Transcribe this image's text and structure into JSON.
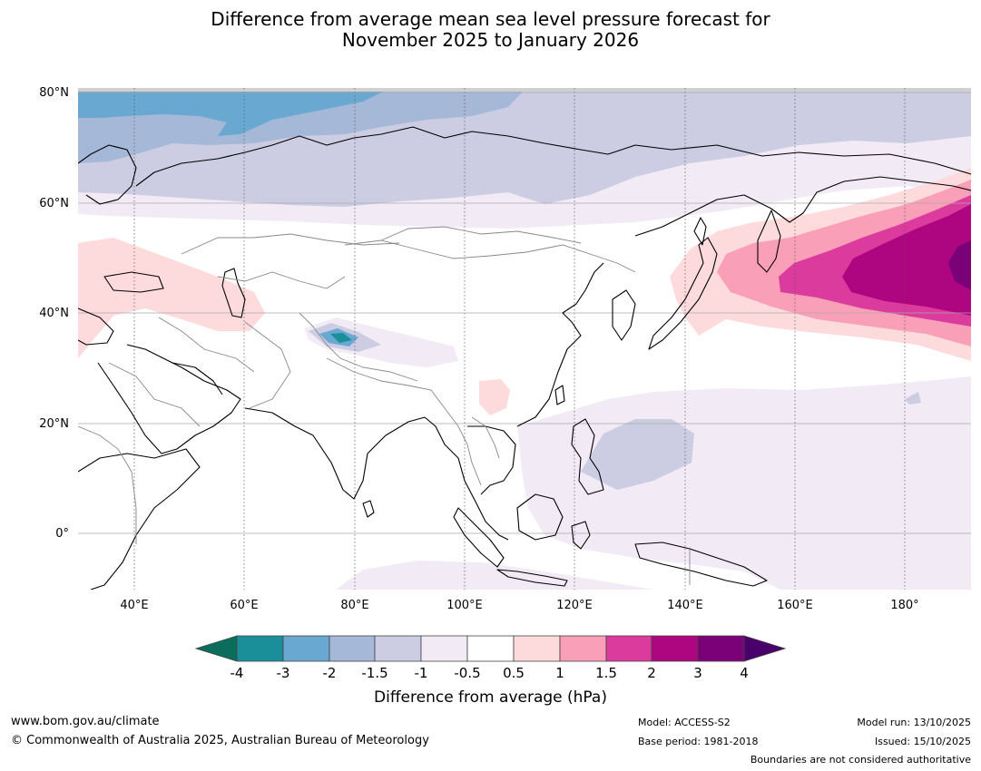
{
  "title": {
    "line1": "Difference from average mean sea level pressure forecast for",
    "line2": "November 2025 to January 2026"
  },
  "map": {
    "lat_labels": [
      "80°N",
      "60°N",
      "40°N",
      "20°N",
      "0°"
    ],
    "lon_labels": [
      "40°E",
      "60°E",
      "80°E",
      "100°E",
      "120°E",
      "140°E",
      "160°E",
      "180°"
    ],
    "extent": {
      "lon_min": 30,
      "lon_max": 192,
      "lat_min": -10,
      "lat_max": 81
    }
  },
  "colorbar": {
    "label": "Difference from average (hPa)",
    "ticks": [
      "-4",
      "-3",
      "-2",
      "-1.5",
      "-1",
      "-0.5",
      "0.5",
      "1",
      "1.5",
      "2",
      "3",
      "4"
    ],
    "colors": {
      "lt_-4": "#0b6e5c",
      "-4_-3": "#1b8f99",
      "-3_-2": "#69a8d0",
      "-2_-1.5": "#a6b8d8",
      "-1.5_-1": "#ccccE2",
      "-1_-0.5": "#f2eaf4",
      "-0.5_0.5": "#ffffff",
      "0.5_1": "#fddbdc",
      "1_1.5": "#f9a0b8",
      "1.5_2": "#dc3b9e",
      "2_3": "#ae0580",
      "3_4": "#7a0177",
      "gt_4": "#49006a"
    }
  },
  "footer": {
    "website": "www.bom.gov.au/climate",
    "copyright": "© Commonwealth of Australia 2025, Australian Bureau of Meteorology",
    "model": "Model: ACCESS-S2",
    "base_period": "Base period: 1981-2018",
    "model_run": "Model run: 13/10/2025",
    "issued": "Issued: 15/10/2025",
    "disclaimer": "Boundaries are not considered authoritative"
  }
}
